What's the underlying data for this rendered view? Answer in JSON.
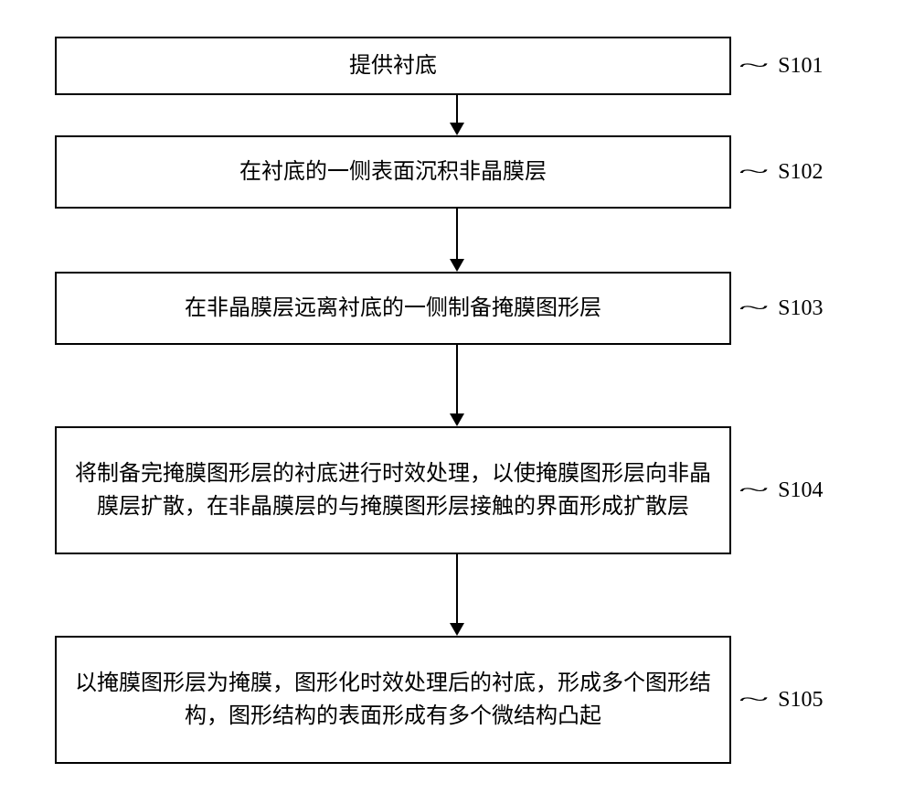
{
  "flowchart": {
    "type": "flowchart",
    "direction": "vertical",
    "background_color": "#ffffff",
    "border_color": "#000000",
    "border_width": 2,
    "text_color": "#000000",
    "font_size": 24,
    "font_family": "SimSun",
    "label_font_family": "Times New Roman",
    "arrow_color": "#000000",
    "nodes": [
      {
        "id": "s101",
        "text": "提供衬底",
        "label": "S101",
        "lines": 1
      },
      {
        "id": "s102",
        "text": "在衬底的一侧表面沉积非晶膜层",
        "label": "S102",
        "lines": 1
      },
      {
        "id": "s103",
        "text": "在非晶膜层远离衬底的一侧制备掩膜图形层",
        "label": "S103",
        "lines": 1
      },
      {
        "id": "s104",
        "text": "将制备完掩膜图形层的衬底进行时效处理，以使掩膜图形层向非晶膜层扩散，在非晶膜层的与掩膜图形层接触的界面形成扩散层",
        "label": "S104",
        "lines": 3
      },
      {
        "id": "s105",
        "text": "以掩膜图形层为掩膜，图形化时效处理后的衬底，形成多个图形结构，图形结构的表面形成有多个微结构凸起",
        "label": "S105",
        "lines": 3
      }
    ],
    "edges": [
      {
        "from": "s101",
        "to": "s102",
        "length": "short"
      },
      {
        "from": "s102",
        "to": "s103",
        "length": "medium"
      },
      {
        "from": "s103",
        "to": "s104",
        "length": "long"
      },
      {
        "from": "s104",
        "to": "s105",
        "length": "long"
      }
    ]
  }
}
